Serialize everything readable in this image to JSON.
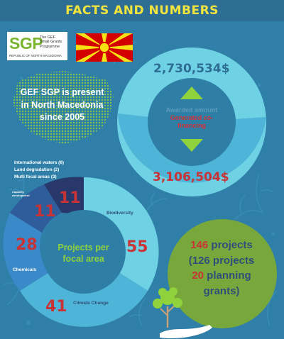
{
  "header": {
    "title": "FACTS AND NUMBERS"
  },
  "logo": {
    "acronym": "SGP",
    "line1": "The GEF",
    "line2": "Small Grants",
    "line3": "Programme",
    "country": "REPUBLIC OF NORTH MACEDONIA"
  },
  "presence": {
    "line1": "GEF SGP is present",
    "line2": "in North Macedonia",
    "line3": "since 2005"
  },
  "funding": {
    "awarded_value": "2,730,534$",
    "awarded_label": "Awarded amount",
    "cofinancing_label_1": "Generated co-",
    "cofinancing_label_2": "financing",
    "cofinancing_value": "3,106,504$"
  },
  "focal": {
    "center_line1": "Projects per",
    "center_line2": "focal area",
    "legend_lines": [
      "International waters (6)",
      "Land degradation (2)",
      "Multi focal areas (3)"
    ],
    "capacity_label_1": "Capacity",
    "capacity_label_2": "development",
    "segments": [
      {
        "label": "Biodiversity",
        "value": "55"
      },
      {
        "label": "Climate Change",
        "value": "41"
      },
      {
        "label": "Chemicals",
        "value": "28"
      },
      {
        "label": "",
        "value": "11"
      },
      {
        "label": "",
        "value": "11"
      }
    ]
  },
  "projects": {
    "total_number": "146",
    "total_label": "projects",
    "paren_line": "(126 projects",
    "planning_number": "20",
    "planning_label": "planning",
    "grants_label": "grants)"
  },
  "colors": {
    "background": "#2f7fa8",
    "header_bar": "#2e6e95",
    "title_yellow": "#f2e43c",
    "accent_red": "#c93336",
    "light_cyan": "#6fd1e4",
    "green_circle": "#78a83c"
  },
  "icons": [
    "flag-icon",
    "map-icon",
    "arrow-up-icon",
    "arrow-down-icon",
    "tree-hand-icon"
  ]
}
